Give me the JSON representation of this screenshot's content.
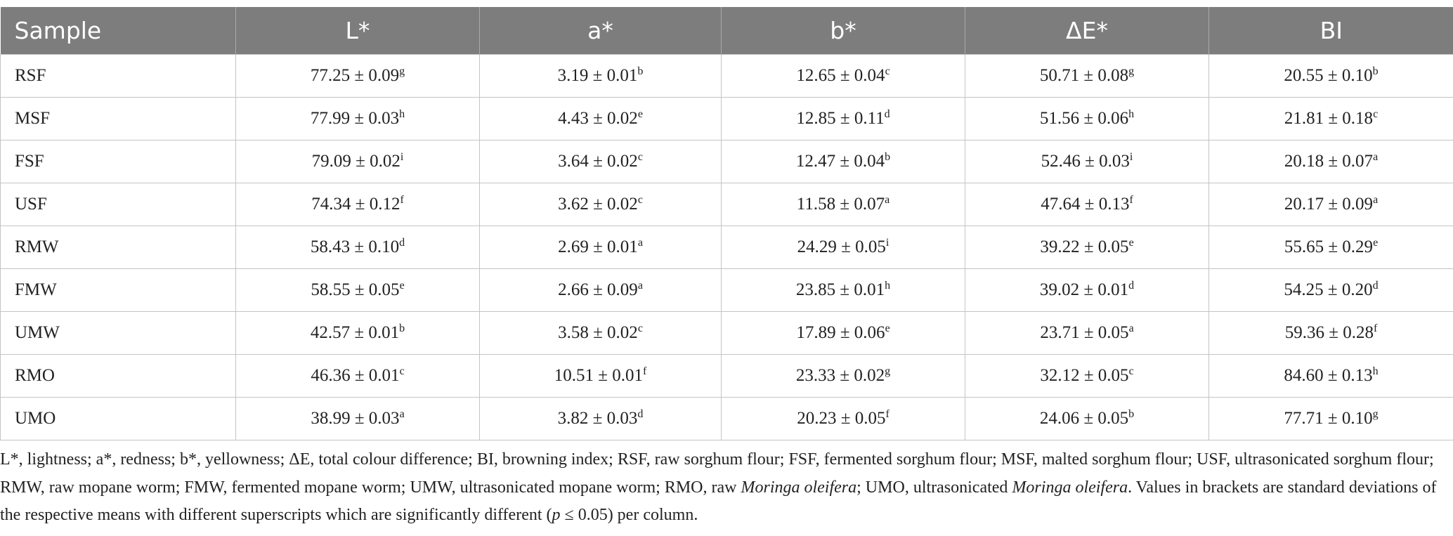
{
  "table": {
    "header": [
      "Sample",
      "L*",
      "a*",
      "b*",
      "ΔE*",
      "BI"
    ],
    "rows": [
      [
        {
          "text": "RSF"
        },
        {
          "text": "77.25 ± 0.09",
          "sup": "g"
        },
        {
          "text": "3.19 ± 0.01",
          "sup": "b"
        },
        {
          "text": "12.65 ± 0.04",
          "sup": "c"
        },
        {
          "text": "50.71 ± 0.08",
          "sup": "g"
        },
        {
          "text": "20.55 ± 0.10",
          "sup": "b"
        }
      ],
      [
        {
          "text": "MSF"
        },
        {
          "text": "77.99 ± 0.03",
          "sup": "h"
        },
        {
          "text": "4.43 ± 0.02",
          "sup": "e"
        },
        {
          "text": "12.85 ± 0.11",
          "sup": "d"
        },
        {
          "text": "51.56 ± 0.06",
          "sup": "h"
        },
        {
          "text": "21.81 ± 0.18",
          "sup": "c"
        }
      ],
      [
        {
          "text": "FSF"
        },
        {
          "text": "79.09 ± 0.02",
          "sup": "i"
        },
        {
          "text": "3.64 ± 0.02",
          "sup": "c"
        },
        {
          "text": "12.47 ± 0.04",
          "sup": "b"
        },
        {
          "text": "52.46 ± 0.03",
          "sup": "i"
        },
        {
          "text": "20.18 ± 0.07",
          "sup": "a"
        }
      ],
      [
        {
          "text": "USF"
        },
        {
          "text": "74.34 ± 0.12",
          "sup": "f"
        },
        {
          "text": "3.62 ± 0.02",
          "sup": "c"
        },
        {
          "text": "11.58 ± 0.07",
          "sup": "a"
        },
        {
          "text": "47.64 ± 0.13",
          "sup": "f"
        },
        {
          "text": "20.17 ± 0.09",
          "sup": "a"
        }
      ],
      [
        {
          "text": "RMW"
        },
        {
          "text": "58.43 ± 0.10",
          "sup": "d"
        },
        {
          "text": "2.69 ± 0.01",
          "sup": "a"
        },
        {
          "text": "24.29 ± 0.05",
          "sup": "i"
        },
        {
          "text": "39.22 ± 0.05",
          "sup": "e"
        },
        {
          "text": "55.65 ± 0.29",
          "sup": "e"
        }
      ],
      [
        {
          "text": "FMW"
        },
        {
          "text": "58.55 ± 0.05",
          "sup": "e"
        },
        {
          "text": "2.66 ± 0.09",
          "sup": "a"
        },
        {
          "text": "23.85 ± 0.01",
          "sup": "h"
        },
        {
          "text": "39.02 ± 0.01",
          "sup": "d"
        },
        {
          "text": "54.25 ± 0.20",
          "sup": "d"
        }
      ],
      [
        {
          "text": "UMW"
        },
        {
          "text": "42.57 ± 0.01",
          "sup": "b"
        },
        {
          "text": "3.58 ± 0.02",
          "sup": "c"
        },
        {
          "text": "17.89 ± 0.06",
          "sup": "e"
        },
        {
          "text": "23.71 ± 0.05",
          "sup": "a"
        },
        {
          "text": "59.36 ± 0.28",
          "sup": "f"
        }
      ],
      [
        {
          "text": "RMO"
        },
        {
          "text": "46.36 ± 0.01",
          "sup": "c"
        },
        {
          "text": "10.51 ± 0.01",
          "sup": "f"
        },
        {
          "text": "23.33 ± 0.02",
          "sup": "g"
        },
        {
          "text": "32.12 ± 0.05",
          "sup": "c"
        },
        {
          "text": "84.60 ± 0.13",
          "sup": "h"
        }
      ],
      [
        {
          "text": "UMO"
        },
        {
          "text": "38.99 ± 0.03",
          "sup": "a"
        },
        {
          "text": "3.82 ± 0.03",
          "sup": "d"
        },
        {
          "text": "20.23 ± 0.05",
          "sup": "f"
        },
        {
          "text": "24.06 ± 0.05",
          "sup": "b"
        },
        {
          "text": "77.71 ± 0.10",
          "sup": "g"
        }
      ]
    ]
  },
  "footnote": [
    {
      "text": "L*, lightness; a*, redness; b*, yellowness; ΔE, total colour difference; BI, browning index; RSF, raw sorghum flour; FSF, fermented sorghum flour; MSF, malted sorghum flour; USF, ultrasonicated sorghum flour; RMW, raw mopane worm; FMW, fermented mopane worm; UMW, ultrasonicated mopane worm; RMO, raw "
    },
    {
      "text": "Moringa oleifera",
      "italic": true
    },
    {
      "text": "; UMO, ultrasonicated "
    },
    {
      "text": "Moringa oleifera",
      "italic": true
    },
    {
      "text": ". Values in brackets are standard deviations of the respective means with different superscripts which are significantly different ("
    },
    {
      "text": "p",
      "italic": true
    },
    {
      "text": " ≤ 0.05) per column."
    }
  ]
}
